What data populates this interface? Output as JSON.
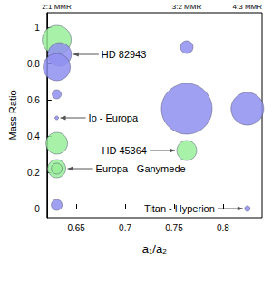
{
  "chart_data": {
    "type": "scatter",
    "x_label": "a₁/a₂",
    "y_label": "Mass Ratio",
    "x": [
      0.63,
      0.633,
      0.63,
      0.63,
      0.63,
      0.63,
      0.63,
      0.63,
      0.63,
      0.763,
      0.763,
      0.763,
      0.825,
      0.825
    ],
    "values": [
      0.93,
      0.85,
      0.78,
      0.63,
      0.5,
      0.36,
      0.22,
      0.22,
      0.02,
      0.89,
      0.55,
      0.32,
      0.55,
      0.0
    ],
    "sizes": [
      32,
      26,
      30,
      10,
      4,
      24,
      20,
      12,
      12,
      14,
      56,
      22,
      36,
      6
    ],
    "colors": [
      "#99ee99",
      "#8f8ff0",
      "#8f8ff0",
      "#8f8ff0",
      "#8f8ff0",
      "#99ee99",
      "#99ee99",
      "#99ee99",
      "#8f8ff0",
      "#8f8ff0",
      "#8f8ff0",
      "#99ee99",
      "#8f8ff0",
      "#8f8ff0"
    ],
    "xlim": [
      0.62,
      0.84
    ],
    "xticks": [
      0.65,
      0.7,
      0.75,
      0.8
    ],
    "ylim": [
      -0.05,
      1.08
    ],
    "yticks": [
      0,
      0.2,
      0.4,
      0.6,
      0.8,
      1
    ],
    "grid": false,
    "resonances": [
      {
        "label": "2:1 MMR",
        "x": 0.63
      },
      {
        "label": "3:2 MMR",
        "x": 0.763
      },
      {
        "label": "4:3 MMR",
        "x": 0.825
      }
    ],
    "annotations": [
      {
        "text": "HD 82943",
        "x": 0.633,
        "y": 0.85
      },
      {
        "text": "Io - Europa",
        "x": 0.63,
        "y": 0.5
      },
      {
        "text": "Europa - Ganymede",
        "x": 0.63,
        "y": 0.22
      },
      {
        "text": "HD 45364",
        "x": 0.763,
        "y": 0.32
      },
      {
        "text": "Titan - Hyperion",
        "x": 0.825,
        "y": 0.0
      }
    ]
  }
}
